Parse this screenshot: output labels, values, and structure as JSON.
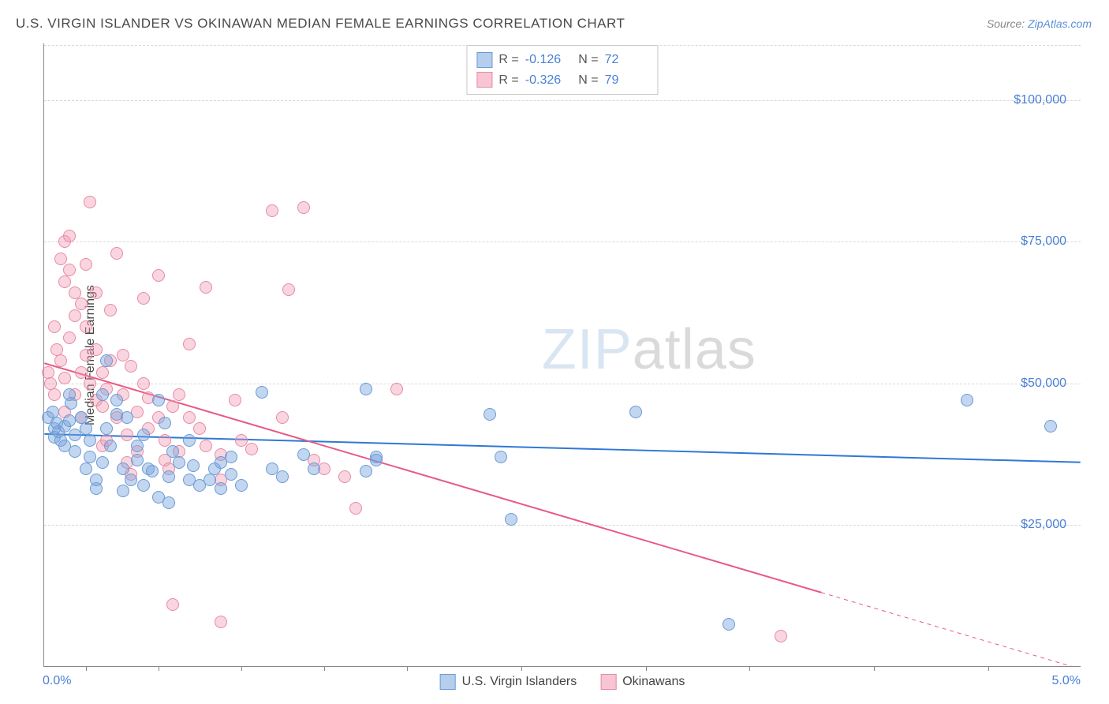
{
  "title": "U.S. VIRGIN ISLANDER VS OKINAWAN MEDIAN FEMALE EARNINGS CORRELATION CHART",
  "source": {
    "label": "Source: ",
    "name": "ZipAtlas.com"
  },
  "watermark": {
    "main": "ZIP",
    "suffix": "atlas"
  },
  "ylabel": "Median Female Earnings",
  "xaxis": {
    "min_label": "0.0%",
    "max_label": "5.0%",
    "min": 0.0,
    "max": 5.0,
    "ticks_pct": [
      0.2,
      0.55,
      0.95,
      1.35,
      1.75,
      2.3,
      2.9,
      3.4,
      4.0,
      4.55
    ]
  },
  "yaxis": {
    "min": 0,
    "max": 110000,
    "ticks": [
      25000,
      50000,
      75000,
      100000
    ],
    "tick_labels": [
      "$25,000",
      "$50,000",
      "$75,000",
      "$100,000"
    ]
  },
  "grid_color": "#d8d8d8",
  "background_color": "#ffffff",
  "stats": [
    {
      "r": "-0.126",
      "n": "72",
      "swatch": "blue"
    },
    {
      "r": "-0.326",
      "n": "79",
      "swatch": "pink"
    }
  ],
  "legend": [
    {
      "label": "U.S. Virgin Islanders",
      "swatch": "blue"
    },
    {
      "label": "Okinawans",
      "swatch": "pink"
    }
  ],
  "series": {
    "blue": {
      "color_fill": "rgba(120,165,220,0.45)",
      "color_stroke": "#6a9ad8",
      "trend": {
        "x1": 0.0,
        "y1": 41000,
        "x2": 5.0,
        "y2": 36000,
        "color": "#2f78d6",
        "width": 2
      },
      "points": [
        [
          0.02,
          44000
        ],
        [
          0.05,
          42000
        ],
        [
          0.05,
          40500
        ],
        [
          0.06,
          43000
        ],
        [
          0.07,
          41500
        ],
        [
          0.04,
          45000
        ],
        [
          0.08,
          40000
        ],
        [
          0.1,
          42500
        ],
        [
          0.1,
          39000
        ],
        [
          0.12,
          48000
        ],
        [
          0.12,
          43500
        ],
        [
          0.13,
          46500
        ],
        [
          0.15,
          41000
        ],
        [
          0.15,
          38000
        ],
        [
          0.18,
          44000
        ],
        [
          0.2,
          42000
        ],
        [
          0.2,
          35000
        ],
        [
          0.22,
          37000
        ],
        [
          0.22,
          40000
        ],
        [
          0.25,
          31500
        ],
        [
          0.25,
          33000
        ],
        [
          0.28,
          48000
        ],
        [
          0.28,
          36000
        ],
        [
          0.3,
          42000
        ],
        [
          0.3,
          54000
        ],
        [
          0.32,
          39000
        ],
        [
          0.35,
          47000
        ],
        [
          0.38,
          35000
        ],
        [
          0.38,
          31000
        ],
        [
          0.4,
          44000
        ],
        [
          0.42,
          33000
        ],
        [
          0.45,
          39000
        ],
        [
          0.45,
          36500
        ],
        [
          0.48,
          32000
        ],
        [
          0.5,
          35000
        ],
        [
          0.52,
          34500
        ],
        [
          0.55,
          47000
        ],
        [
          0.55,
          30000
        ],
        [
          0.58,
          43000
        ],
        [
          0.6,
          29000
        ],
        [
          0.6,
          33500
        ],
        [
          0.62,
          38000
        ],
        [
          0.65,
          36000
        ],
        [
          0.7,
          40000
        ],
        [
          0.7,
          33000
        ],
        [
          0.72,
          35500
        ],
        [
          0.75,
          32000
        ],
        [
          0.8,
          33000
        ],
        [
          0.82,
          35000
        ],
        [
          0.85,
          31500
        ],
        [
          0.85,
          36000
        ],
        [
          0.9,
          37000
        ],
        [
          0.9,
          34000
        ],
        [
          0.95,
          32000
        ],
        [
          1.05,
          48500
        ],
        [
          1.1,
          35000
        ],
        [
          1.15,
          33500
        ],
        [
          1.25,
          37500
        ],
        [
          1.3,
          35000
        ],
        [
          1.55,
          49000
        ],
        [
          1.55,
          34500
        ],
        [
          1.6,
          37000
        ],
        [
          1.6,
          36500
        ],
        [
          2.15,
          44500
        ],
        [
          2.2,
          37000
        ],
        [
          2.25,
          26000
        ],
        [
          2.85,
          45000
        ],
        [
          3.3,
          7500
        ],
        [
          4.45,
          47000
        ],
        [
          4.85,
          42500
        ],
        [
          0.35,
          44500
        ],
        [
          0.48,
          41000
        ]
      ]
    },
    "pink": {
      "color_fill": "rgba(240,150,175,0.40)",
      "color_stroke": "#e88aa5",
      "trend": {
        "x1": 0.0,
        "y1": 53500,
        "x2": 3.75,
        "y2": 13000,
        "color": "#e85a85",
        "width": 2,
        "dash_x1": 3.75,
        "dash_y1": 13000,
        "dash_x2": 5.0,
        "dash_y2": -500
      },
      "points": [
        [
          0.02,
          52000
        ],
        [
          0.03,
          50000
        ],
        [
          0.05,
          48000
        ],
        [
          0.05,
          60000
        ],
        [
          0.06,
          56000
        ],
        [
          0.08,
          72000
        ],
        [
          0.08,
          54000
        ],
        [
          0.1,
          75000
        ],
        [
          0.1,
          51000
        ],
        [
          0.1,
          45000
        ],
        [
          0.1,
          68000
        ],
        [
          0.12,
          76000
        ],
        [
          0.12,
          70000
        ],
        [
          0.12,
          58000
        ],
        [
          0.15,
          62000
        ],
        [
          0.15,
          66000
        ],
        [
          0.15,
          48000
        ],
        [
          0.18,
          64000
        ],
        [
          0.18,
          52000
        ],
        [
          0.18,
          44000
        ],
        [
          0.2,
          55000
        ],
        [
          0.2,
          60000
        ],
        [
          0.2,
          71000
        ],
        [
          0.22,
          82000
        ],
        [
          0.22,
          50000
        ],
        [
          0.25,
          56000
        ],
        [
          0.25,
          47000
        ],
        [
          0.25,
          66000
        ],
        [
          0.28,
          39000
        ],
        [
          0.28,
          46000
        ],
        [
          0.28,
          52000
        ],
        [
          0.3,
          49000
        ],
        [
          0.3,
          40000
        ],
        [
          0.32,
          63000
        ],
        [
          0.32,
          54000
        ],
        [
          0.35,
          44000
        ],
        [
          0.35,
          73000
        ],
        [
          0.38,
          48000
        ],
        [
          0.38,
          55000
        ],
        [
          0.4,
          41000
        ],
        [
          0.4,
          36000
        ],
        [
          0.42,
          34000
        ],
        [
          0.42,
          53000
        ],
        [
          0.45,
          45000
        ],
        [
          0.45,
          38000
        ],
        [
          0.48,
          50000
        ],
        [
          0.48,
          65000
        ],
        [
          0.5,
          42000
        ],
        [
          0.5,
          47500
        ],
        [
          0.55,
          44000
        ],
        [
          0.55,
          69000
        ],
        [
          0.58,
          40000
        ],
        [
          0.58,
          36500
        ],
        [
          0.6,
          35000
        ],
        [
          0.62,
          46000
        ],
        [
          0.62,
          11000
        ],
        [
          0.65,
          38000
        ],
        [
          0.65,
          48000
        ],
        [
          0.7,
          44000
        ],
        [
          0.7,
          57000
        ],
        [
          0.75,
          42000
        ],
        [
          0.78,
          39000
        ],
        [
          0.78,
          67000
        ],
        [
          0.85,
          37500
        ],
        [
          0.85,
          33000
        ],
        [
          0.85,
          8000
        ],
        [
          0.92,
          47000
        ],
        [
          0.95,
          40000
        ],
        [
          1.0,
          38500
        ],
        [
          1.1,
          80500
        ],
        [
          1.15,
          44000
        ],
        [
          1.18,
          66500
        ],
        [
          1.25,
          81000
        ],
        [
          1.3,
          36500
        ],
        [
          1.35,
          35000
        ],
        [
          1.45,
          33500
        ],
        [
          1.5,
          28000
        ],
        [
          1.7,
          49000
        ],
        [
          3.55,
          5500
        ]
      ]
    }
  }
}
